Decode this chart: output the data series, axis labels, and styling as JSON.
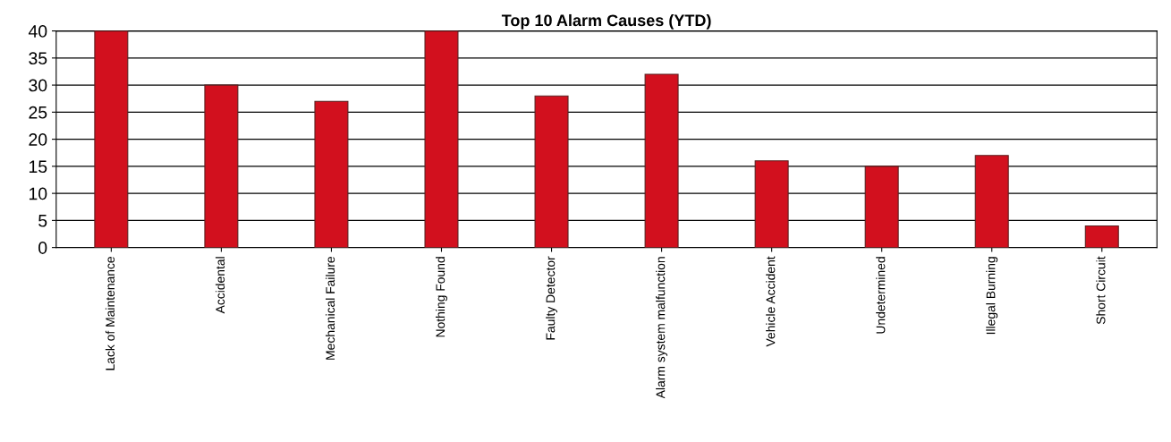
{
  "chart_data": {
    "type": "bar",
    "title": "Top 10 Alarm Causes (YTD)",
    "categories": [
      "Lack of Maintenance",
      "Accidental",
      "Mechanical Failure",
      "Nothing Found",
      "Faulty Detector",
      "Alarm system malfunction",
      "Vehicle Accident",
      "Undetermined",
      "Illegal Burning",
      "Short Circuit"
    ],
    "values": [
      40,
      30,
      27,
      40,
      28,
      32,
      16,
      15,
      17,
      4
    ],
    "color": "#d2101e",
    "ylim": [
      0,
      40
    ],
    "yticks": [
      0,
      5,
      10,
      15,
      20,
      25,
      30,
      35,
      40
    ],
    "grid": "y",
    "legend": false
  }
}
